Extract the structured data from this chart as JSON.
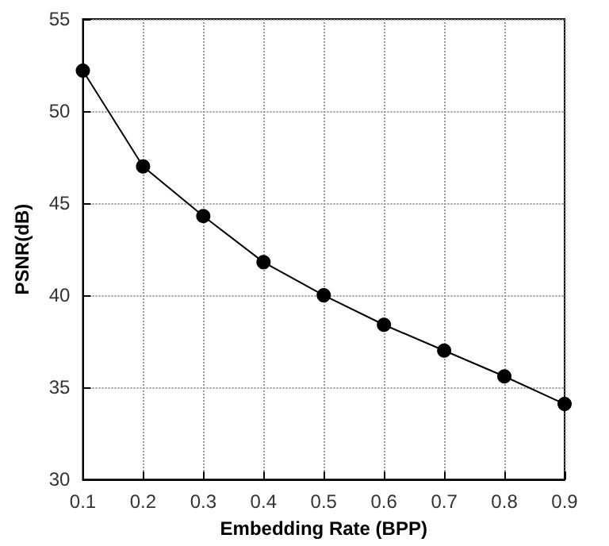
{
  "chart_data": {
    "type": "line",
    "xlabel": "Embedding Rate (BPP)",
    "ylabel": "PSNR(dB)",
    "x": [
      0.1,
      0.2,
      0.3,
      0.4,
      0.5,
      0.6,
      0.7,
      0.8,
      0.9
    ],
    "series": [
      {
        "color": "#000000",
        "values": [
          52.2,
          47.0,
          44.3,
          41.8,
          40.0,
          38.4,
          37.0,
          35.6,
          34.1
        ]
      }
    ],
    "xlim": [
      0.1,
      0.9
    ],
    "xticks": [
      0.1,
      0.2,
      0.3,
      0.4,
      0.5,
      0.6,
      0.7,
      0.8,
      0.9
    ],
    "ylim": [
      30,
      55
    ],
    "yticks": [
      30,
      35,
      40,
      45,
      50,
      55
    ],
    "grid": true,
    "marker": "circle",
    "line_style": "solid"
  }
}
